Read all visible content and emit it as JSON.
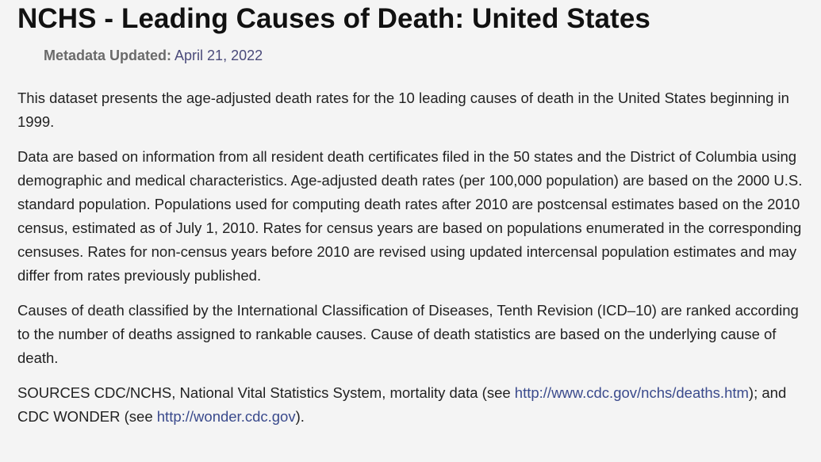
{
  "title": "NCHS - Leading Causes of Death: United States",
  "metadata": {
    "label": "Metadata Updated:",
    "value": "April 21, 2022"
  },
  "paragraphs": {
    "p1": "This dataset presents the age-adjusted death rates for the 10 leading causes of death in the United States beginning in 1999.",
    "p2": "Data are based on information from all resident death certificates filed in the 50 states and the District of Columbia using demographic and medical characteristics. Age-adjusted death rates (per 100,000 population) are based on the 2000 U.S. standard population. Populations used for computing death rates after 2010 are postcensal estimates based on the 2010 census, estimated as of July 1, 2010. Rates for census years are based on populations enumerated in the corresponding censuses. Rates for non-census years before 2010 are revised using updated intercensal population estimates and may differ from rates previously published.",
    "p3": "Causes of death classified by the International Classification of Diseases, Tenth Revision (ICD–10) are ranked according to the number of deaths assigned to rankable causes. Cause of death statistics are based on the underlying cause of death."
  },
  "sources": {
    "prefix": "SOURCES CDC/NCHS, National Vital Statistics System, mortality data (see ",
    "link1": "http://www.cdc.gov/nchs/deaths.htm",
    "middle": "); and CDC WONDER (see ",
    "link2": "http://wonder.cdc.gov",
    "suffix": ")."
  }
}
